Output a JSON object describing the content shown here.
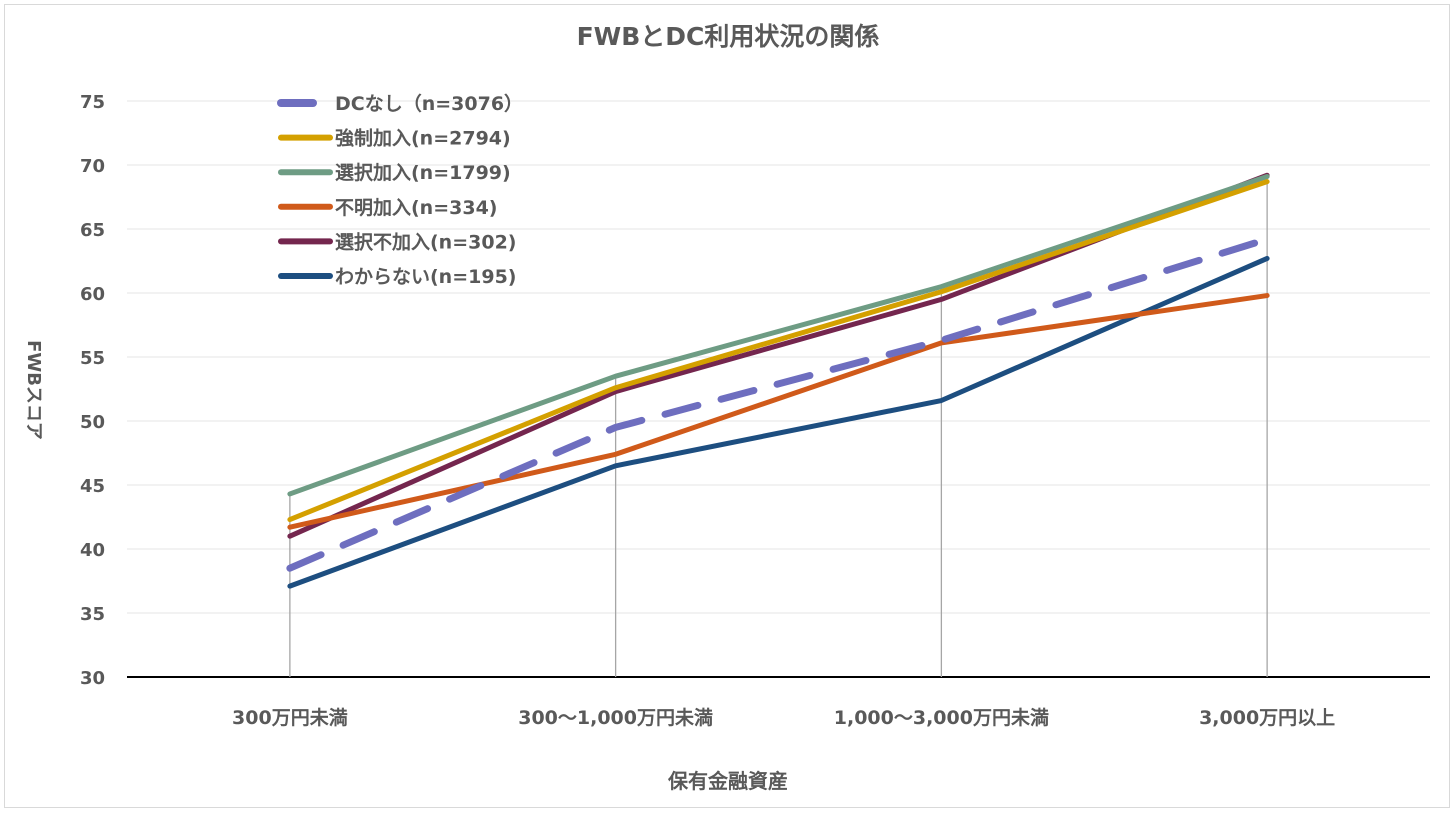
{
  "chart_data": {
    "type": "line",
    "title": "FWBとDC利用状況の関係",
    "xlabel": "保有金融資産",
    "ylabel": "FWBスコア",
    "ylim": [
      30,
      75
    ],
    "yticks": [
      30,
      35,
      40,
      45,
      50,
      55,
      60,
      65,
      70,
      75
    ],
    "grid": true,
    "legend_position": "top-left",
    "categories": [
      "300万円未満",
      "300～1,000万円未満",
      "1,000～3,000万円未満",
      "3,000万円以上"
    ],
    "series": [
      {
        "name": "DCなし（n=3076）",
        "color": "#6E6EBF",
        "dashed": true,
        "values": [
          38.5,
          49.5,
          56.3,
          64.2
        ]
      },
      {
        "name": "強制加入(n=2794)",
        "color": "#D4A000",
        "values": [
          42.3,
          52.6,
          60.1,
          68.7
        ]
      },
      {
        "name": "選択加入(n=1799)",
        "color": "#6E9C84",
        "values": [
          44.3,
          53.5,
          60.5,
          69.1
        ]
      },
      {
        "name": "不明加入(n=334)",
        "color": "#D05A1A",
        "values": [
          41.7,
          47.4,
          56.1,
          59.8
        ]
      },
      {
        "name": "選択不加入(n=302)",
        "color": "#74264E",
        "values": [
          41.0,
          52.3,
          59.5,
          69.2
        ]
      },
      {
        "name": "わからない(n=195)",
        "color": "#1D4E80",
        "values": [
          37.1,
          46.5,
          51.6,
          62.7
        ]
      }
    ]
  }
}
